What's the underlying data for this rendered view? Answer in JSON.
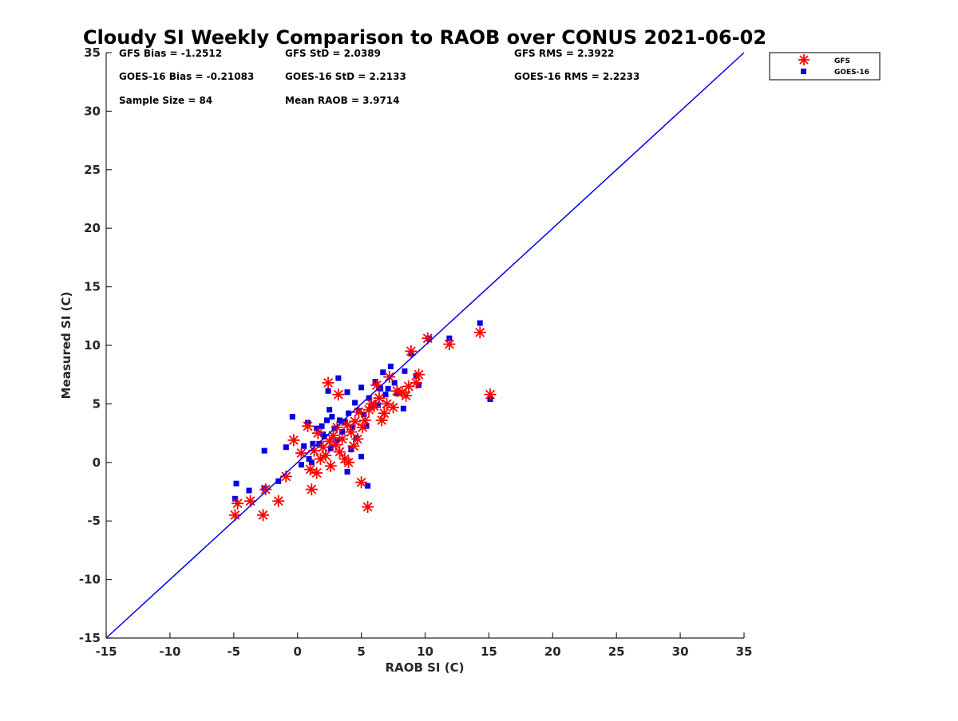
{
  "chart_data": {
    "type": "scatter",
    "title": "Cloudy SI Weekly Comparison to RAOB over CONUS 2021-06-02",
    "xlabel": "RAOB SI (C)",
    "ylabel": "Measured SI (C)",
    "xlim": [
      -15,
      35
    ],
    "ylim": [
      -15,
      35
    ],
    "xticks": [
      "-15",
      "-10",
      "-5",
      "0",
      "5",
      "10",
      "15",
      "20",
      "25",
      "30",
      "35"
    ],
    "yticks": [
      "-15",
      "-10",
      "-5",
      "0",
      "5",
      "10",
      "15",
      "20",
      "25",
      "30",
      "35"
    ],
    "grid": false,
    "legend_position": "top-right outside plot",
    "reference_line": {
      "from": [
        -15,
        -15
      ],
      "to": [
        35,
        35
      ],
      "color": "#0000e6"
    },
    "stats": {
      "gfs_bias": "GFS Bias = -1.2512",
      "gfs_std": "GFS StD = 2.0389",
      "gfs_rms": "GFS RMS = 2.3922",
      "goes_bias": "GOES-16 Bias = -0.21083",
      "goes_std": "GOES-16 StD = 2.2133",
      "goes_rms": "GOES-16 RMS = 2.2233",
      "sample_size": "Sample Size = 84",
      "mean_raob": "Mean RAOB = 3.9714"
    },
    "series": [
      {
        "name": "GFS",
        "marker": "asterisk",
        "color": "#ff0000",
        "points": [
          [
            -4.9,
            -4.5
          ],
          [
            -4.7,
            -3.5
          ],
          [
            -3.7,
            -3.3
          ],
          [
            -2.7,
            -4.5
          ],
          [
            -2.5,
            -2.3
          ],
          [
            -1.5,
            -3.3
          ],
          [
            -0.9,
            -1.2
          ],
          [
            -0.3,
            1.9
          ],
          [
            0.3,
            0.8
          ],
          [
            0.8,
            3.1
          ],
          [
            1.0,
            -0.6
          ],
          [
            1.1,
            -2.3
          ],
          [
            1.3,
            1.0
          ],
          [
            1.5,
            -0.9
          ],
          [
            1.6,
            2.5
          ],
          [
            1.8,
            0.3
          ],
          [
            2.0,
            1.3
          ],
          [
            2.2,
            0.6
          ],
          [
            2.4,
            6.8
          ],
          [
            2.5,
            1.8
          ],
          [
            2.6,
            -0.3
          ],
          [
            2.8,
            2.3
          ],
          [
            3.0,
            1.5
          ],
          [
            3.1,
            3.0
          ],
          [
            3.2,
            5.8
          ],
          [
            3.3,
            0.9
          ],
          [
            3.5,
            2.0
          ],
          [
            3.7,
            0.3
          ],
          [
            3.9,
            3.2
          ],
          [
            4.0,
            0.0
          ],
          [
            4.2,
            2.6
          ],
          [
            4.4,
            1.4
          ],
          [
            4.5,
            3.5
          ],
          [
            4.7,
            2.0
          ],
          [
            4.8,
            4.3
          ],
          [
            5.0,
            -1.7
          ],
          [
            5.1,
            3.0
          ],
          [
            5.3,
            3.6
          ],
          [
            5.5,
            -3.8
          ],
          [
            5.6,
            4.5
          ],
          [
            5.8,
            5.0
          ],
          [
            6.0,
            4.8
          ],
          [
            6.2,
            6.6
          ],
          [
            6.4,
            5.5
          ],
          [
            6.6,
            3.6
          ],
          [
            6.8,
            4.2
          ],
          [
            7.0,
            5.0
          ],
          [
            7.2,
            7.3
          ],
          [
            7.5,
            4.7
          ],
          [
            7.8,
            6.1
          ],
          [
            8.2,
            6.0
          ],
          [
            8.5,
            5.7
          ],
          [
            8.7,
            6.5
          ],
          [
            8.9,
            9.5
          ],
          [
            9.3,
            6.8
          ],
          [
            9.5,
            7.5
          ],
          [
            10.2,
            10.6
          ],
          [
            11.9,
            10.1
          ],
          [
            14.3,
            11.1
          ],
          [
            15.1,
            5.8
          ]
        ]
      },
      {
        "name": "GOES-16",
        "marker": "square",
        "color": "#0000e6",
        "points": [
          [
            -4.8,
            -1.8
          ],
          [
            -4.9,
            -3.1
          ],
          [
            -3.8,
            -2.4
          ],
          [
            -2.6,
            -2.2
          ],
          [
            -2.6,
            1.0
          ],
          [
            -1.5,
            -1.6
          ],
          [
            -0.9,
            1.3
          ],
          [
            -0.4,
            3.9
          ],
          [
            0.3,
            -0.2
          ],
          [
            0.5,
            1.4
          ],
          [
            0.9,
            0.3
          ],
          [
            0.8,
            3.4
          ],
          [
            1.1,
            0.0
          ],
          [
            1.2,
            1.6
          ],
          [
            1.5,
            2.9
          ],
          [
            1.7,
            1.6
          ],
          [
            1.9,
            3.1
          ],
          [
            2.0,
            2.4
          ],
          [
            2.1,
            2.2
          ],
          [
            2.3,
            3.6
          ],
          [
            2.4,
            6.1
          ],
          [
            2.5,
            4.5
          ],
          [
            2.6,
            1.2
          ],
          [
            2.7,
            3.9
          ],
          [
            2.9,
            2.9
          ],
          [
            3.1,
            1.9
          ],
          [
            3.2,
            7.2
          ],
          [
            3.3,
            3.6
          ],
          [
            3.5,
            2.6
          ],
          [
            3.7,
            3.5
          ],
          [
            3.9,
            6.0
          ],
          [
            3.9,
            -0.8
          ],
          [
            4.0,
            4.2
          ],
          [
            4.2,
            1.1
          ],
          [
            4.3,
            3.0
          ],
          [
            4.5,
            5.1
          ],
          [
            4.6,
            2.1
          ],
          [
            4.8,
            4.4
          ],
          [
            5.0,
            6.4
          ],
          [
            5.0,
            0.5
          ],
          [
            5.2,
            4.1
          ],
          [
            5.4,
            3.1
          ],
          [
            5.5,
            -2.0
          ],
          [
            5.6,
            5.5
          ],
          [
            5.8,
            4.8
          ],
          [
            6.1,
            6.9
          ],
          [
            6.3,
            4.9
          ],
          [
            6.5,
            6.3
          ],
          [
            6.7,
            7.7
          ],
          [
            6.9,
            5.8
          ],
          [
            7.1,
            6.3
          ],
          [
            7.3,
            8.2
          ],
          [
            7.6,
            6.8
          ],
          [
            7.8,
            5.9
          ],
          [
            8.3,
            4.6
          ],
          [
            8.4,
            7.8
          ],
          [
            8.9,
            9.3
          ],
          [
            9.3,
            7.4
          ],
          [
            9.5,
            6.6
          ],
          [
            10.3,
            10.6
          ],
          [
            11.9,
            10.6
          ],
          [
            14.3,
            11.9
          ],
          [
            15.1,
            5.4
          ]
        ]
      }
    ]
  }
}
